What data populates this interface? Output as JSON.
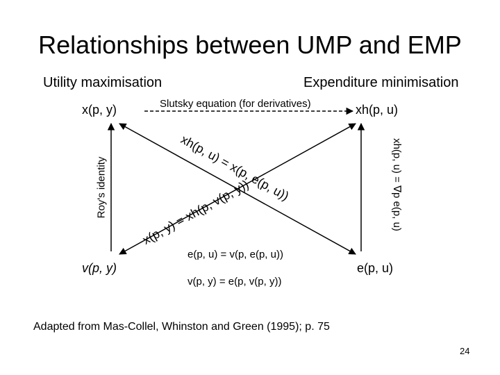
{
  "title": "Relationships between UMP and EMP",
  "left_header": "Utility maximisation",
  "right_header": "Expenditure minimisation",
  "nodes": {
    "marshallian_demand": "x(p, y)",
    "hicksian_demand": "xh(p, u)",
    "indirect_utility": "v(p, y)",
    "expenditure_function": "e(p, u)"
  },
  "labels": {
    "slutsky": "Slutsky equation (for derivatives)",
    "roys_identity": "Roy's identity",
    "shephard": "xh(p, u) = ∇p e(p, u)",
    "diag_down": "xh(p, u) = x(p, e(p, u))",
    "diag_up": "x(p, y) = xh(p, v(p, y))",
    "duality_1": "e(p, u) = v(p, e(p, u))",
    "duality_2": "v(p, y) = e(p, v(p, y))"
  },
  "source": "Adapted from Mas-Collel, Whinston and Green (1995); p. 75",
  "page_number": "24"
}
